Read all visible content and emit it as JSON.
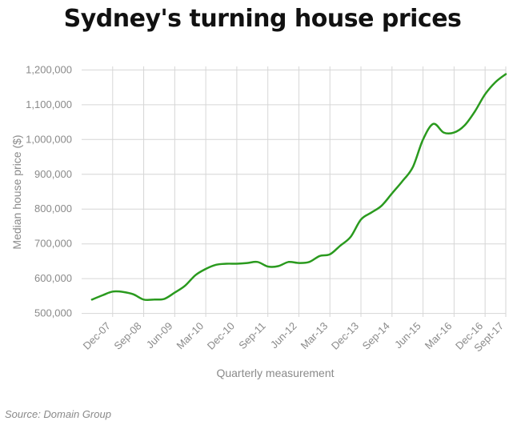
{
  "title": "Sydney's turning house prices",
  "source": "Source: Domain Group",
  "chart_data": {
    "type": "line",
    "title": "Sydney's turning house prices",
    "xlabel": "Quarterly measurement",
    "ylabel": "Median house price ($)",
    "ylim": [
      490000,
      1210000
    ],
    "yticks": [
      500000,
      600000,
      700000,
      800000,
      900000,
      1000000,
      1100000,
      1200000
    ],
    "ytick_labels": [
      "500,000",
      "600,000",
      "700,000",
      "800,000",
      "900,000",
      "1,000,000",
      "1,100,000",
      "1,200,000"
    ],
    "xlim": [
      0,
      41
    ],
    "xticks": [
      3,
      6,
      9,
      12,
      15,
      18,
      21,
      24,
      27,
      30,
      33,
      36,
      39,
      41
    ],
    "xtick_labels": [
      "Dec-07",
      "Sep-08",
      "Jun-09",
      "Mar-10",
      "Dec-10",
      "Sep-11",
      "Jun-12",
      "Mar-13",
      "Dec-13",
      "Sep-14",
      "Jun-15",
      "Mar-16",
      "Dec-16",
      "Sept-17"
    ],
    "grid": true,
    "line_color": "#2a9a1e",
    "series": [
      {
        "name": "Median house price",
        "x": [
          1,
          2,
          3,
          4,
          5,
          6,
          7,
          8,
          9,
          10,
          11,
          12,
          13,
          14,
          15,
          16,
          17,
          18,
          19,
          20,
          21,
          22,
          23,
          24,
          25,
          26,
          27,
          28,
          29,
          30,
          31,
          32,
          33,
          34,
          35,
          36,
          37,
          38,
          39,
          40,
          41
        ],
        "values": [
          540000,
          552000,
          563000,
          562000,
          555000,
          540000,
          540000,
          542000,
          560000,
          580000,
          610000,
          628000,
          640000,
          643000,
          643000,
          645000,
          648000,
          635000,
          636000,
          648000,
          645000,
          648000,
          665000,
          670000,
          695000,
          720000,
          770000,
          790000,
          810000,
          845000,
          880000,
          920000,
          1000000,
          1045000,
          1020000,
          1020000,
          1040000,
          1080000,
          1130000,
          1165000,
          1188000
        ]
      }
    ]
  }
}
